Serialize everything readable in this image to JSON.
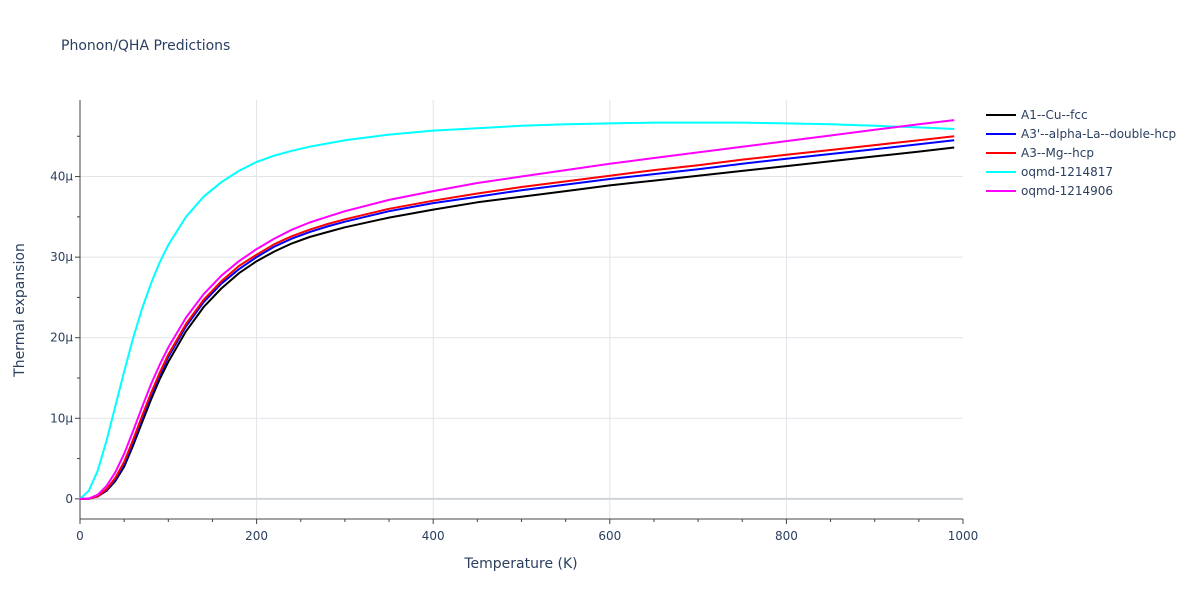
{
  "chart_data": {
    "type": "line",
    "title": "Phonon/QHA Predictions",
    "xlabel": "Temperature (K)",
    "ylabel": "Thermal expansion",
    "xlim": [
      0,
      1000
    ],
    "ylim": [
      -2.5e-06,
      4.95e-05
    ],
    "x_ticks": [
      0,
      200,
      400,
      600,
      800,
      1000
    ],
    "x_tick_labels": [
      "0",
      "200",
      "400",
      "600",
      "800",
      "1000"
    ],
    "y_ticks": [
      0,
      1e-05,
      2e-05,
      3e-05,
      4e-05
    ],
    "y_tick_labels": [
      "0",
      "10μ",
      "20μ",
      "30μ",
      "40μ"
    ],
    "grid": true,
    "legend_position": "top-right",
    "x": [
      0,
      10,
      20,
      30,
      40,
      50,
      60,
      70,
      80,
      90,
      100,
      120,
      140,
      160,
      180,
      200,
      220,
      240,
      260,
      280,
      300,
      350,
      400,
      450,
      500,
      550,
      600,
      650,
      700,
      750,
      800,
      850,
      900,
      950,
      990
    ],
    "series": [
      {
        "name": "A1--Cu--fcc",
        "color": "#000000",
        "values": [
          0,
          2e-08,
          3e-07,
          1e-06,
          2.2e-06,
          4e-06,
          6.6e-06,
          9.4e-06,
          1.22e-05,
          1.48e-05,
          1.7e-05,
          2.08e-05,
          2.38e-05,
          2.61e-05,
          2.8e-05,
          2.95e-05,
          3.07e-05,
          3.17e-05,
          3.25e-05,
          3.31e-05,
          3.37e-05,
          3.49e-05,
          3.59e-05,
          3.68e-05,
          3.75e-05,
          3.82e-05,
          3.89e-05,
          3.95e-05,
          4.01e-05,
          4.07e-05,
          4.13e-05,
          4.19e-05,
          4.25e-05,
          4.31e-05,
          4.36e-05
        ]
      },
      {
        "name": "A3'--alpha-La--double-hcp",
        "color": "#0000ff",
        "values": [
          0,
          2e-08,
          3e-07,
          1.1e-06,
          2.4e-06,
          4.3e-06,
          7e-06,
          9.9e-06,
          1.27e-05,
          1.53e-05,
          1.76e-05,
          2.14e-05,
          2.44e-05,
          2.67e-05,
          2.85e-05,
          3e-05,
          3.13e-05,
          3.23e-05,
          3.31e-05,
          3.38e-05,
          3.44e-05,
          3.57e-05,
          3.67e-05,
          3.75e-05,
          3.83e-05,
          3.9e-05,
          3.97e-05,
          4.03e-05,
          4.09e-05,
          4.16e-05,
          4.22e-05,
          4.28e-05,
          4.34e-05,
          4.4e-05,
          4.45e-05
        ]
      },
      {
        "name": "A3--Mg--hcp",
        "color": "#ff0000",
        "values": [
          0,
          2e-08,
          3e-07,
          1.2e-06,
          2.6e-06,
          4.6e-06,
          7.3e-06,
          1.02e-05,
          1.3e-05,
          1.56e-05,
          1.79e-05,
          2.17e-05,
          2.47e-05,
          2.7e-05,
          2.89e-05,
          3.03e-05,
          3.16e-05,
          3.26e-05,
          3.34e-05,
          3.41e-05,
          3.47e-05,
          3.6e-05,
          3.7e-05,
          3.79e-05,
          3.87e-05,
          3.94e-05,
          4.01e-05,
          4.08e-05,
          4.14e-05,
          4.21e-05,
          4.27e-05,
          4.33e-05,
          4.39e-05,
          4.45e-05,
          4.5e-05
        ]
      },
      {
        "name": "oqmd-1214817",
        "color": "#00ffff",
        "values": [
          0,
          1e-06,
          3.5e-06,
          7.2e-06,
          1.15e-05,
          1.58e-05,
          1.99e-05,
          2.35e-05,
          2.66e-05,
          2.93e-05,
          3.15e-05,
          3.5e-05,
          3.75e-05,
          3.93e-05,
          4.07e-05,
          4.18e-05,
          4.26e-05,
          4.32e-05,
          4.37e-05,
          4.41e-05,
          4.45e-05,
          4.52e-05,
          4.57e-05,
          4.6e-05,
          4.63e-05,
          4.65e-05,
          4.66e-05,
          4.67e-05,
          4.67e-05,
          4.67e-05,
          4.66e-05,
          4.65e-05,
          4.63e-05,
          4.61e-05,
          4.59e-05
        ]
      },
      {
        "name": "oqmd-1214906",
        "color": "#ff00ff",
        "values": [
          0,
          5e-08,
          5e-07,
          1.6e-06,
          3.3e-06,
          5.6e-06,
          8.4e-06,
          1.13e-05,
          1.41e-05,
          1.66e-05,
          1.88e-05,
          2.25e-05,
          2.54e-05,
          2.77e-05,
          2.95e-05,
          3.1e-05,
          3.23e-05,
          3.34e-05,
          3.43e-05,
          3.5e-05,
          3.57e-05,
          3.71e-05,
          3.82e-05,
          3.92e-05,
          4e-05,
          4.08e-05,
          4.16e-05,
          4.23e-05,
          4.3e-05,
          4.37e-05,
          4.44e-05,
          4.51e-05,
          4.58e-05,
          4.65e-05,
          4.7e-05
        ]
      }
    ]
  }
}
